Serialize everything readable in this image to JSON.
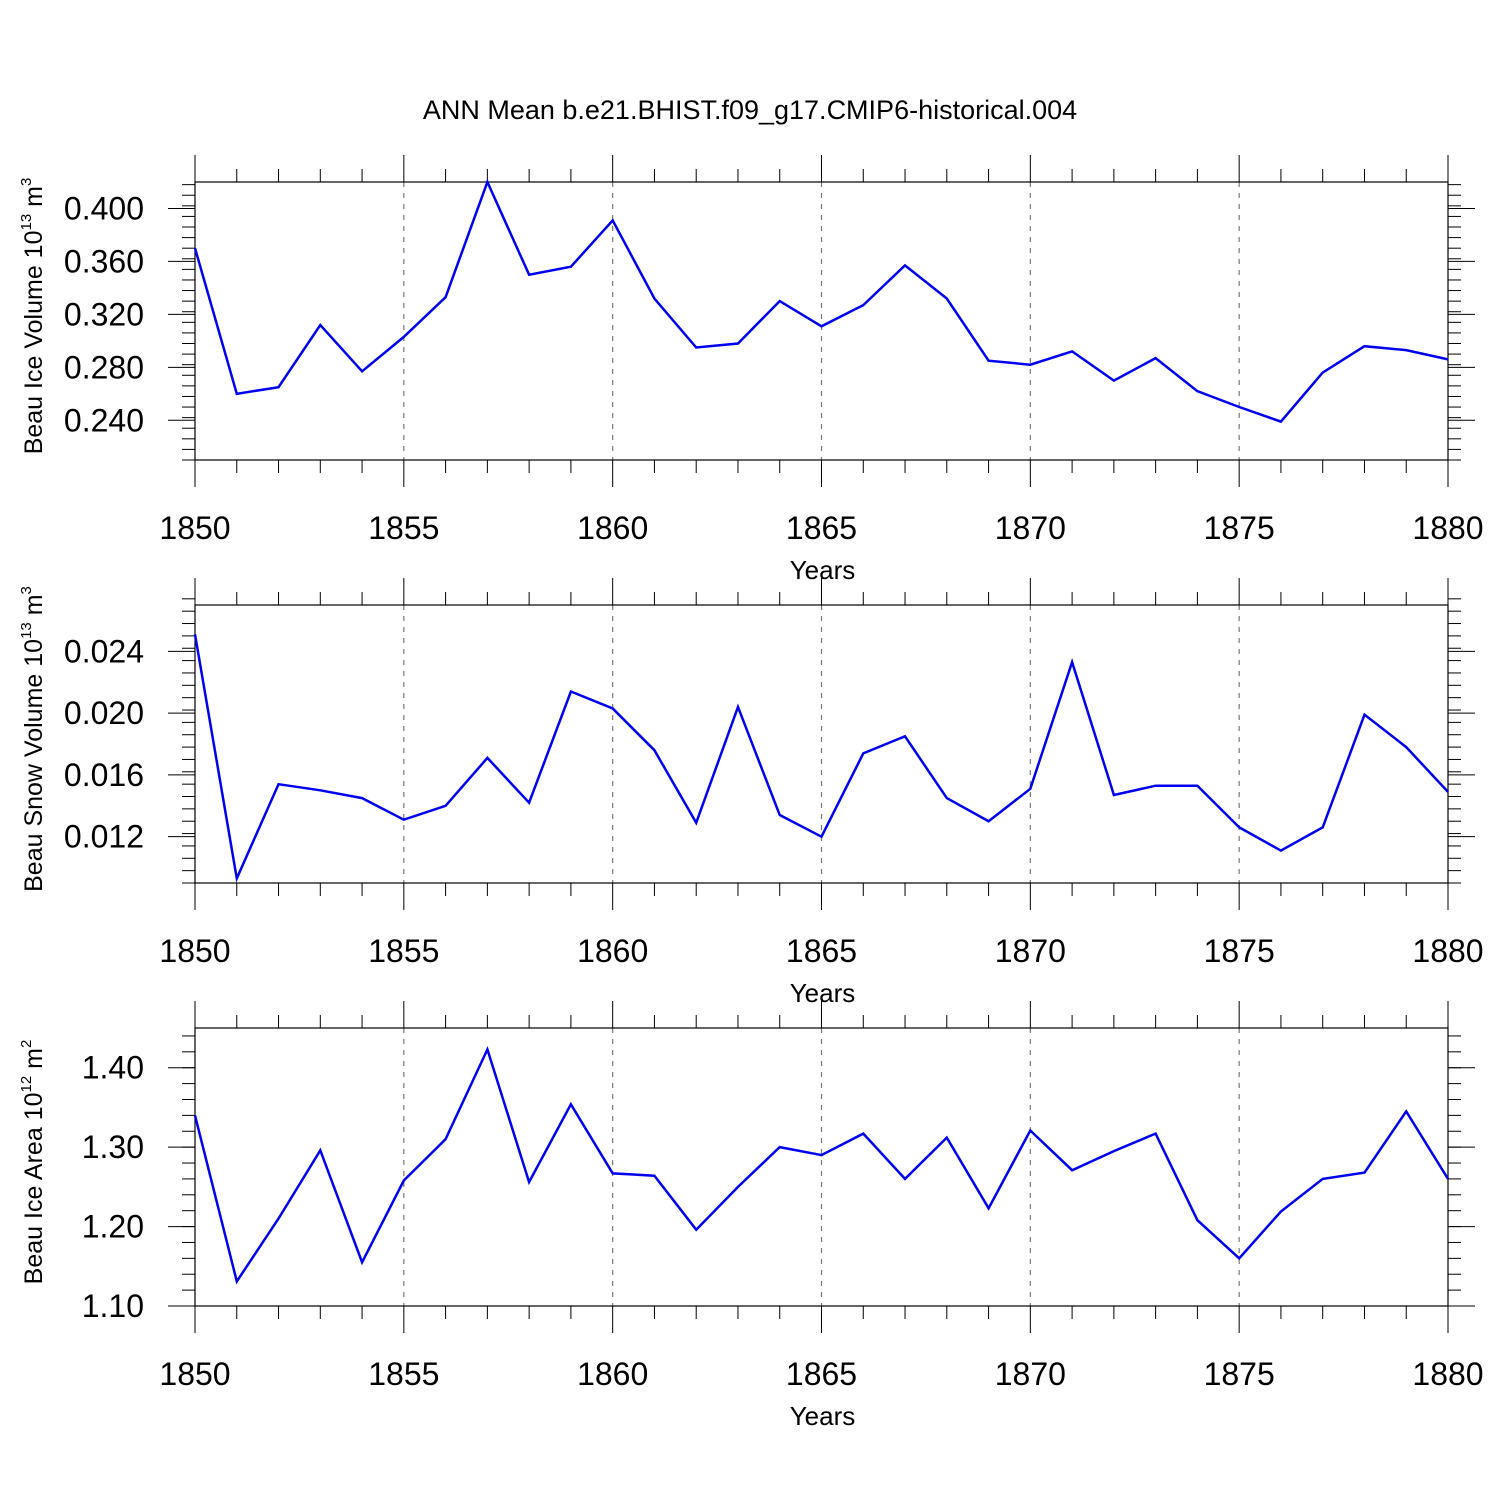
{
  "title": "ANN Mean b.e21.BHIST.f09_g17.CMIP6-historical.004",
  "colors": {
    "line": "#0000ee",
    "grid": "#777777",
    "axis": "#000000"
  },
  "chart_data": [
    {
      "type": "line",
      "ylabel": {
        "text": "Beau Ice Volume 10",
        "sup": "13",
        "unit": " m",
        "unit_sup": "3"
      },
      "xlabel": "Years",
      "xlim": [
        1850,
        1880
      ],
      "ylim": [
        0.21,
        0.42
      ],
      "xticks": [
        1850,
        1855,
        1860,
        1865,
        1870,
        1875,
        1880
      ],
      "yticks": [
        0.24,
        0.28,
        0.32,
        0.36,
        0.4
      ],
      "ytick_labels": [
        "0.240",
        "0.280",
        "0.320",
        "0.360",
        "0.400"
      ],
      "ytick_minor_step": 0.008,
      "grid": "x-dashed",
      "x": [
        1850,
        1851,
        1852,
        1853,
        1854,
        1855,
        1856,
        1857,
        1858,
        1859,
        1860,
        1861,
        1862,
        1863,
        1864,
        1865,
        1866,
        1867,
        1868,
        1869,
        1870,
        1871,
        1872,
        1873,
        1874,
        1875,
        1876,
        1877,
        1878,
        1879,
        1880
      ],
      "values": [
        0.37,
        0.26,
        0.265,
        0.312,
        0.277,
        0.303,
        0.333,
        0.42,
        0.35,
        0.356,
        0.391,
        0.332,
        0.295,
        0.298,
        0.33,
        0.311,
        0.327,
        0.357,
        0.332,
        0.285,
        0.282,
        0.292,
        0.27,
        0.287,
        0.262,
        0.25,
        0.239,
        0.276,
        0.296,
        0.293,
        0.286
      ]
    },
    {
      "type": "line",
      "ylabel": {
        "text": "Beau Snow Volume 10",
        "sup": "13",
        "unit": " m",
        "unit_sup": "3"
      },
      "xlabel": "Years",
      "xlim": [
        1850,
        1880
      ],
      "ylim": [
        0.009,
        0.027
      ],
      "xticks": [
        1850,
        1855,
        1860,
        1865,
        1870,
        1875,
        1880
      ],
      "yticks": [
        0.012,
        0.016,
        0.02,
        0.024
      ],
      "ytick_labels": [
        "0.012",
        "0.016",
        "0.020",
        "0.024"
      ],
      "ytick_minor_step": 0.0008,
      "grid": "x-dashed",
      "x": [
        1850,
        1851,
        1852,
        1853,
        1854,
        1855,
        1856,
        1857,
        1858,
        1859,
        1860,
        1861,
        1862,
        1863,
        1864,
        1865,
        1866,
        1867,
        1868,
        1869,
        1870,
        1871,
        1872,
        1873,
        1874,
        1875,
        1876,
        1877,
        1878,
        1879,
        1880
      ],
      "values": [
        0.0251,
        0.0093,
        0.0154,
        0.015,
        0.0145,
        0.0131,
        0.014,
        0.0171,
        0.0142,
        0.0214,
        0.0203,
        0.0176,
        0.0129,
        0.0204,
        0.0134,
        0.012,
        0.0174,
        0.0185,
        0.0145,
        0.013,
        0.0151,
        0.0233,
        0.0147,
        0.0153,
        0.0153,
        0.0126,
        0.0111,
        0.0126,
        0.0199,
        0.0178,
        0.0149
      ]
    },
    {
      "type": "line",
      "ylabel": {
        "text": "Beau Ice Area 10",
        "sup": "12",
        "unit": " m",
        "unit_sup": "2"
      },
      "xlabel": "Years",
      "xlim": [
        1850,
        1880
      ],
      "ylim": [
        1.1,
        1.45
      ],
      "xticks": [
        1850,
        1855,
        1860,
        1865,
        1870,
        1875,
        1880
      ],
      "yticks": [
        1.1,
        1.2,
        1.3,
        1.4
      ],
      "ytick_labels": [
        "1.10",
        "1.20",
        "1.30",
        "1.40"
      ],
      "ytick_minor_step": 0.02,
      "grid": "x-dashed",
      "x": [
        1850,
        1851,
        1852,
        1853,
        1854,
        1855,
        1856,
        1857,
        1858,
        1859,
        1860,
        1861,
        1862,
        1863,
        1864,
        1865,
        1866,
        1867,
        1868,
        1869,
        1870,
        1871,
        1872,
        1873,
        1874,
        1875,
        1876,
        1877,
        1878,
        1879,
        1880
      ],
      "values": [
        1.34,
        1.131,
        1.21,
        1.296,
        1.155,
        1.258,
        1.31,
        1.423,
        1.256,
        1.354,
        1.267,
        1.264,
        1.196,
        1.25,
        1.3,
        1.29,
        1.317,
        1.26,
        1.312,
        1.223,
        1.321,
        1.271,
        1.295,
        1.317,
        1.208,
        1.16,
        1.219,
        1.26,
        1.268,
        1.345,
        1.26
      ]
    }
  ]
}
